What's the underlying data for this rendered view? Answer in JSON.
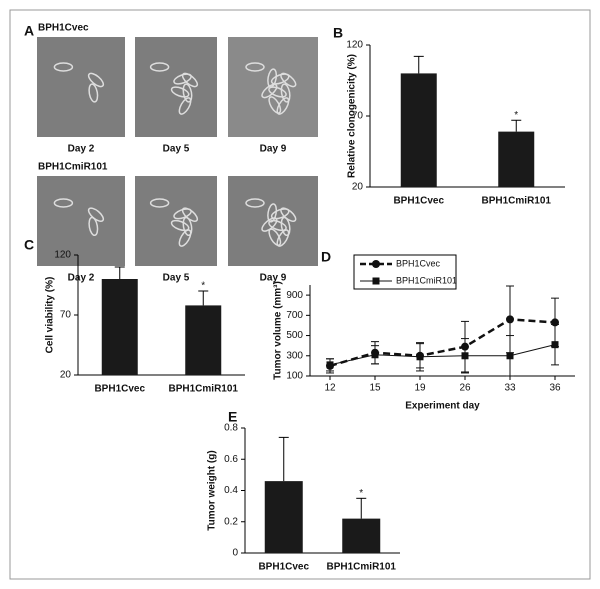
{
  "panel_a": {
    "panel": "A",
    "groups": [
      {
        "label": "BPH1Cvec",
        "days": [
          "Day 2",
          "Day 5",
          "Day 9"
        ]
      },
      {
        "label": "BPH1CmiR101",
        "days": [
          "Day 2",
          "Day 5",
          "Day 9"
        ]
      }
    ]
  },
  "chart_data": [
    {
      "type": "bar",
      "panel": "B",
      "ylabel": "Relative clonogenicity  (%)",
      "categories": [
        "BPH1Cvec",
        "BPH1CmiR101"
      ],
      "values": [
        100,
        59
      ],
      "errors": [
        12,
        8
      ],
      "color": "#1a1a1a",
      "ylim": [
        20,
        120
      ],
      "yticks": [
        20,
        70,
        120
      ],
      "annotation": "*"
    },
    {
      "type": "bar",
      "panel": "C",
      "ylabel": "Cell viability (%)",
      "categories": [
        "BPH1Cvec",
        "BPH1CmiR101"
      ],
      "values": [
        100,
        78
      ],
      "errors": [
        10,
        12
      ],
      "color": "#1a1a1a",
      "ylim": [
        20,
        120
      ],
      "yticks": [
        20,
        70,
        120
      ],
      "annotation": "*"
    },
    {
      "type": "line",
      "panel": "D",
      "xlabel": "Experiment day",
      "ylabel": "Tumor volume (mm³)",
      "categories": [
        "12",
        "15",
        "19",
        "26",
        "33",
        "36"
      ],
      "series": [
        {
          "name": "BPH1Cvec",
          "color": "#111111",
          "linestyle": "dashed",
          "marker": "circle",
          "values": [
            200,
            330,
            300,
            390,
            660,
            630
          ],
          "errors": [
            70,
            110,
            120,
            250,
            330,
            240
          ]
        },
        {
          "name": "BPH1CmiR101",
          "color": "#111111",
          "linestyle": "solid",
          "marker": "square",
          "values": [
            210,
            310,
            290,
            300,
            300,
            410
          ],
          "errors": [
            60,
            90,
            140,
            170,
            200,
            200
          ]
        }
      ],
      "ylim": [
        100,
        1000
      ],
      "yticks": [
        100,
        300,
        500,
        700,
        900
      ]
    },
    {
      "type": "bar",
      "panel": "E",
      "ylabel": "Tumor weight (g)",
      "categories": [
        "BPH1Cvec",
        "BPH1CmiR101"
      ],
      "values": [
        0.46,
        0.22
      ],
      "errors": [
        0.28,
        0.13
      ],
      "color": "#1a1a1a",
      "ylim": [
        0,
        0.8
      ],
      "yticks": [
        0,
        0.2,
        0.4,
        0.6,
        0.8
      ],
      "annotation": "*"
    }
  ]
}
